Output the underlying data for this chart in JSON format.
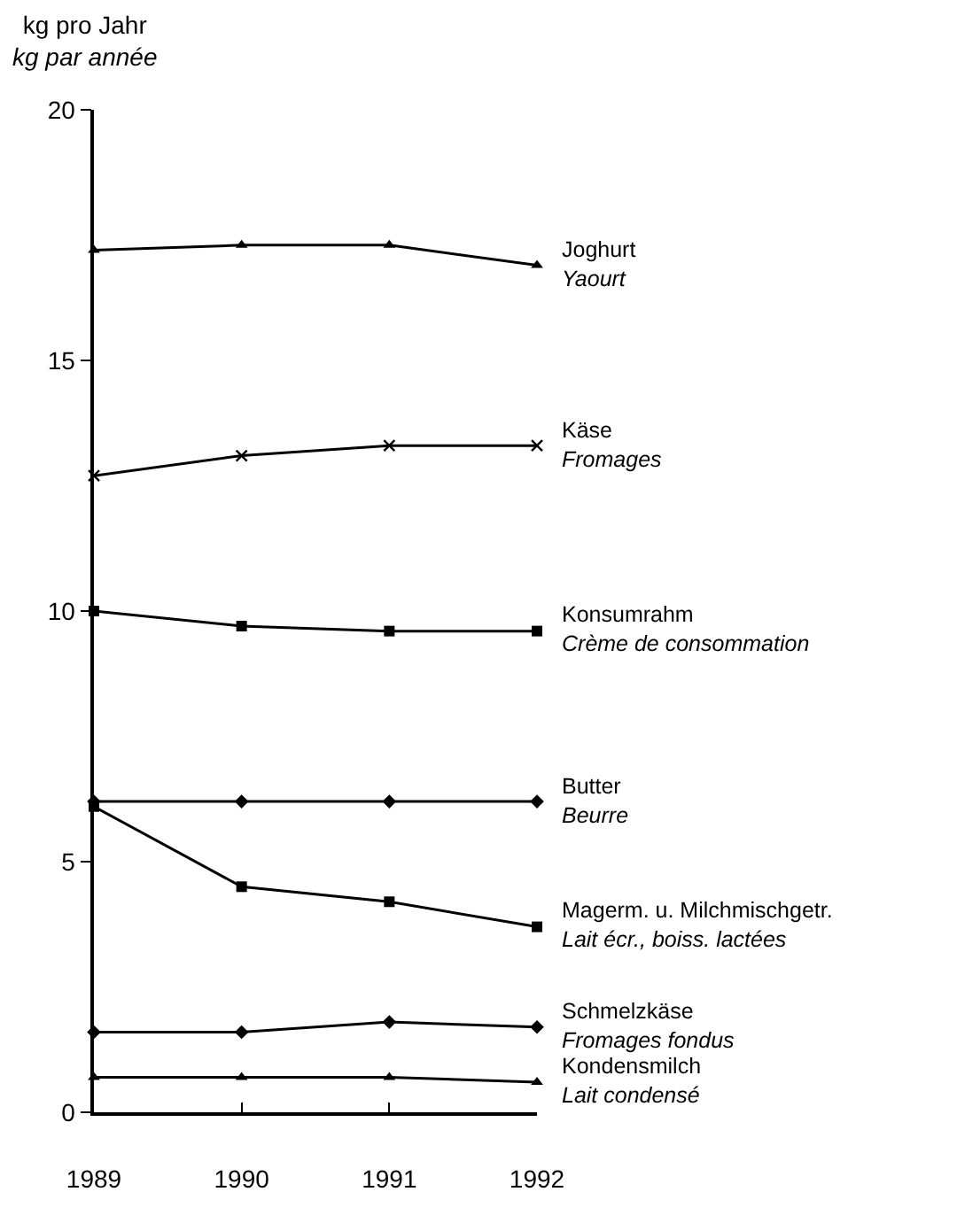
{
  "chart_data": {
    "type": "line",
    "ylabel": "kg pro Jahr\nkg par année",
    "x": [
      1989,
      1990,
      1991,
      1992
    ],
    "series": [
      {
        "name": "Joghurt\nYaourt",
        "color": "#000000",
        "marker": "triangle",
        "values": [
          17.2,
          17.3,
          17.3,
          16.9
        ]
      },
      {
        "name": "Käse\nFromages",
        "color": "#000000",
        "marker": "cross",
        "values": [
          12.7,
          13.1,
          13.3,
          13.3
        ]
      },
      {
        "name": "Konsumrahm\nCrème de consommation",
        "color": "#000000",
        "marker": "square",
        "values": [
          10.0,
          9.7,
          9.6,
          9.6
        ]
      },
      {
        "name": "Butter\nBeurre",
        "color": "#000000",
        "marker": "diamond",
        "values": [
          6.2,
          6.2,
          6.2,
          6.2
        ]
      },
      {
        "name": "Magerm. u. Milchmischgetr.\nLait écr., boiss. lactées",
        "color": "#000000",
        "marker": "square",
        "values": [
          6.1,
          4.5,
          4.2,
          3.7
        ]
      },
      {
        "name": "Schmelzkäse\nFromages fondus",
        "color": "#000000",
        "marker": "diamond",
        "values": [
          1.6,
          1.6,
          1.8,
          1.7
        ]
      },
      {
        "name": "Kondensmilch\nLait condensé",
        "color": "#000000",
        "marker": "triangle",
        "values": [
          0.7,
          0.7,
          0.7,
          0.6
        ]
      }
    ],
    "xlim": [
      1989,
      1992
    ],
    "xticks": [
      1989,
      1990,
      1991,
      1992
    ],
    "ylim": [
      0,
      20
    ],
    "yticks": [
      0,
      5,
      10,
      15,
      20
    ],
    "legend": false,
    "line_style": "solid"
  }
}
